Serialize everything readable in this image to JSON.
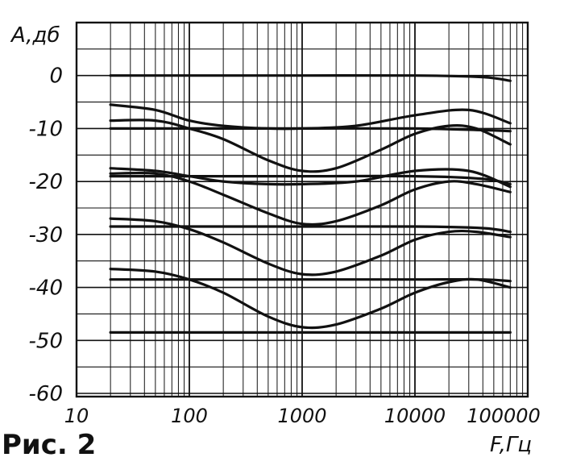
{
  "caption": "Рис. 2",
  "chart_data": {
    "type": "line",
    "xscale": "log",
    "xlim": [
      10,
      100000
    ],
    "ylim": [
      -60,
      0
    ],
    "ylabel": "A,дб",
    "xlabel": "F,Гц",
    "grid": true,
    "legend": "none",
    "yticks": [
      "0",
      "-10",
      "-20",
      "-30",
      "-40",
      "-50",
      "-60"
    ],
    "xticks": [
      "10",
      "100",
      "1000",
      "10000",
      "100000"
    ],
    "series": [
      {
        "x": [
          20,
          100,
          1000,
          10000,
          40000,
          70000
        ],
        "y": [
          0,
          0,
          0,
          0,
          -0.3,
          -1
        ]
      },
      {
        "x": [
          20,
          100,
          1000,
          10000,
          40000,
          70000
        ],
        "y": [
          -10,
          -10,
          -10,
          -10,
          -10.3,
          -10.5
        ]
      },
      {
        "x": [
          20,
          50,
          100,
          200,
          500,
          1000,
          3000,
          10000,
          30000,
          70000
        ],
        "y": [
          -5.5,
          -6.5,
          -8.5,
          -9.5,
          -10,
          -10,
          -9.5,
          -7.5,
          -6.5,
          -9
        ]
      },
      {
        "x": [
          20,
          50,
          100,
          200,
          500,
          1000,
          2000,
          5000,
          10000,
          20000,
          35000,
          70000
        ],
        "y": [
          -8.5,
          -8.5,
          -10,
          -12,
          -16,
          -18,
          -17.5,
          -14,
          -11,
          -9.5,
          -10,
          -13
        ]
      },
      {
        "x": [
          20,
          100,
          1000,
          10000,
          40000,
          70000
        ],
        "y": [
          -19,
          -19,
          -19,
          -19,
          -19.5,
          -20.5
        ]
      },
      {
        "x": [
          20,
          50,
          100,
          200,
          500,
          1000,
          3000,
          10000,
          30000,
          70000
        ],
        "y": [
          -17.5,
          -18,
          -19,
          -20,
          -20.5,
          -20.5,
          -20,
          -18,
          -18,
          -21
        ]
      },
      {
        "x": [
          20,
          50,
          100,
          200,
          500,
          1000,
          2000,
          5000,
          10000,
          20000,
          35000,
          70000
        ],
        "y": [
          -18.5,
          -18.5,
          -20,
          -22.5,
          -26,
          -28,
          -27.5,
          -24.5,
          -21.5,
          -20,
          -20.5,
          -22
        ]
      },
      {
        "x": [
          20,
          100,
          1000,
          10000,
          40000,
          70000
        ],
        "y": [
          -28.5,
          -28.5,
          -28.5,
          -28.5,
          -28.8,
          -29.5
        ]
      },
      {
        "x": [
          20,
          50,
          100,
          200,
          500,
          1000,
          2000,
          5000,
          10000,
          20000,
          35000,
          70000
        ],
        "y": [
          -27,
          -27.5,
          -29,
          -31.5,
          -35.5,
          -37.5,
          -37,
          -34,
          -31,
          -29.5,
          -29.5,
          -30.5
        ]
      },
      {
        "x": [
          20,
          100,
          1000,
          10000,
          40000,
          70000
        ],
        "y": [
          -38.5,
          -38.5,
          -38.5,
          -38.5,
          -38.5,
          -38.8
        ]
      },
      {
        "x": [
          20,
          50,
          100,
          200,
          500,
          1000,
          2000,
          5000,
          10000,
          20000,
          35000,
          70000
        ],
        "y": [
          -36.5,
          -37,
          -38.5,
          -41,
          -45.5,
          -47.5,
          -47,
          -44,
          -41,
          -39,
          -38.5,
          -40
        ]
      },
      {
        "x": [
          20,
          100,
          1000,
          10000,
          40000,
          70000
        ],
        "y": [
          -48.5,
          -48.5,
          -48.5,
          -48.5,
          -48.5,
          -48.5
        ]
      }
    ]
  }
}
